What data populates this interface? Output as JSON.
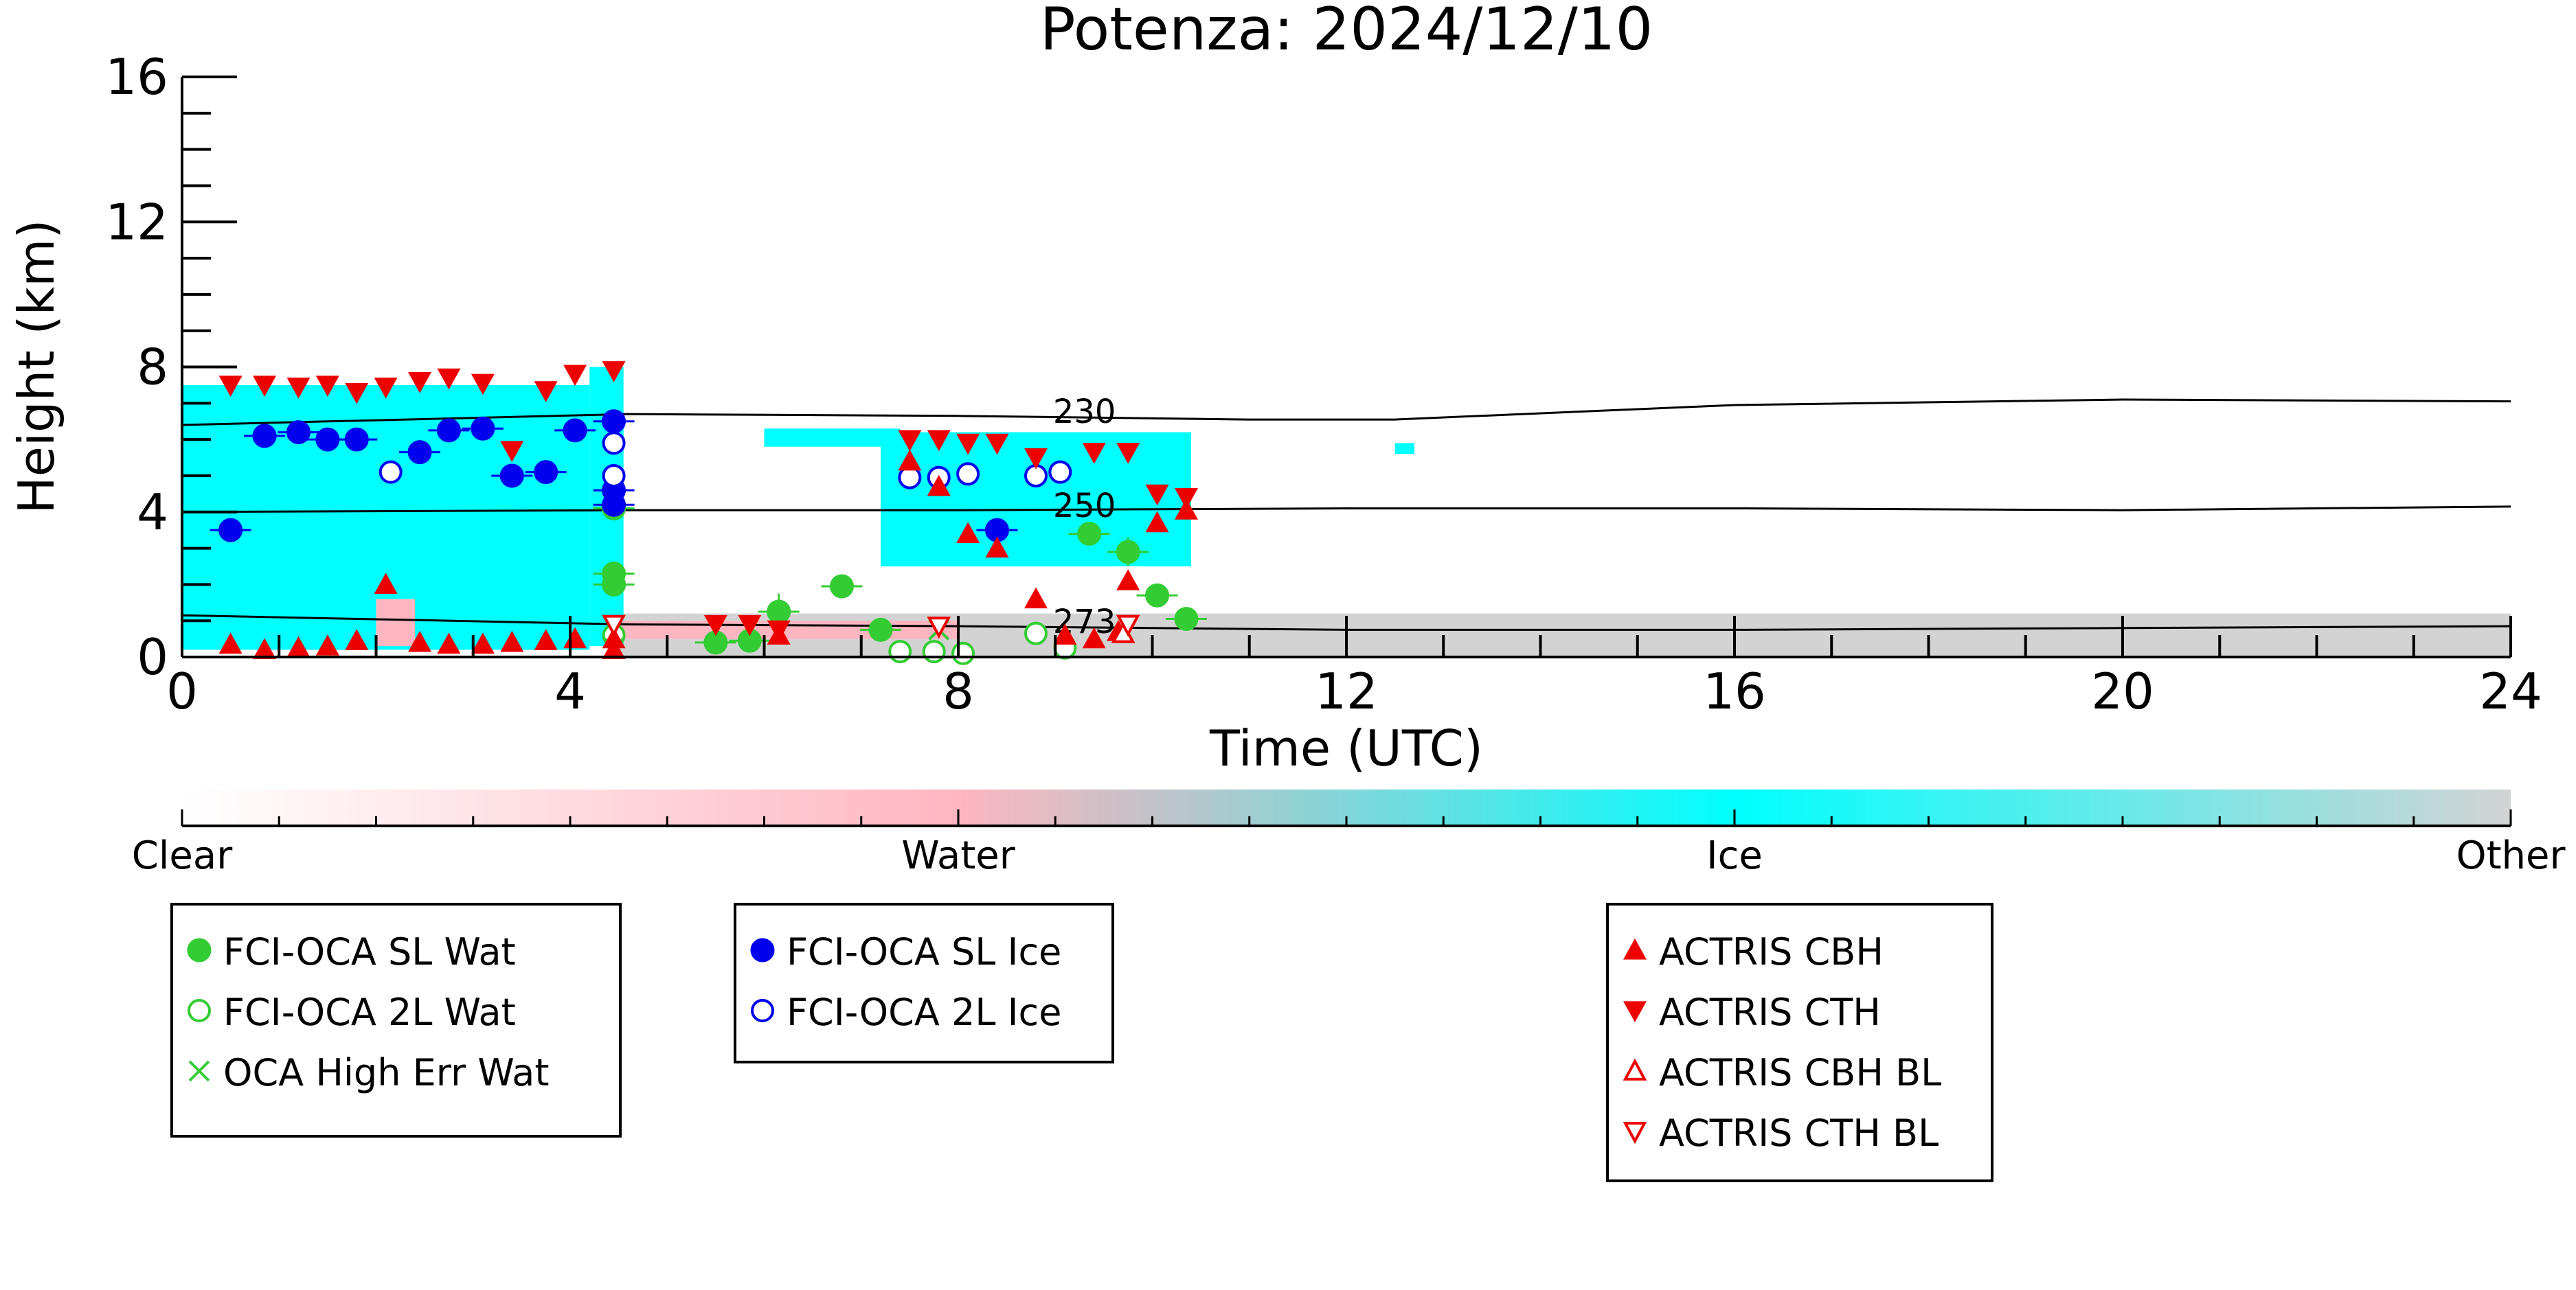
{
  "chart_data": {
    "type": "scatter",
    "title": "Potenza: 2024/12/10",
    "xlabel": "Time (UTC)",
    "ylabel": "Height (km)",
    "xlim": [
      0,
      24
    ],
    "ylim": [
      0,
      16
    ],
    "xticks": [
      0,
      4,
      8,
      12,
      16,
      20,
      24
    ],
    "yticks": [
      0,
      4,
      8,
      12,
      16
    ],
    "grid": false,
    "cloud_mask": {
      "description_colors": {
        "Clear": "#ffffff",
        "Water": "#ffb6c1",
        "Ice": "#00ffff",
        "Other": "#d3d3d3"
      },
      "ice_blocks": [
        {
          "x": [
            0.0,
            4.2
          ],
          "y": [
            0.2,
            7.5
          ]
        },
        {
          "x": [
            4.2,
            4.55
          ],
          "y": [
            0.3,
            8.0
          ]
        },
        {
          "x": [
            7.2,
            10.4
          ],
          "y": [
            2.5,
            6.2
          ]
        },
        {
          "x": [
            6.0,
            7.4
          ],
          "y": [
            5.8,
            6.3
          ]
        },
        {
          "x": [
            12.5,
            12.7
          ],
          "y": [
            5.6,
            5.9
          ]
        }
      ],
      "other_blocks": [
        {
          "x": [
            4.4,
            24.0
          ],
          "y": [
            0.0,
            1.2
          ]
        }
      ],
      "water_blocks": [
        {
          "x": [
            2.0,
            2.4
          ],
          "y": [
            0.3,
            1.6
          ]
        },
        {
          "x": [
            4.4,
            8.0
          ],
          "y": [
            0.5,
            1.0
          ]
        }
      ]
    },
    "isotherms": [
      {
        "label": "230",
        "x": [
          0.0,
          4.6,
          8.0,
          11.0,
          12.5,
          16.0,
          20.0,
          24.0
        ],
        "y": [
          6.4,
          6.7,
          6.65,
          6.55,
          6.55,
          6.95,
          7.1,
          7.05
        ]
      },
      {
        "label": "250",
        "x": [
          0.0,
          4.6,
          8.0,
          12.0,
          16.0,
          20.0,
          24.0
        ],
        "y": [
          4.0,
          4.05,
          4.05,
          4.1,
          4.1,
          4.05,
          4.15
        ]
      },
      {
        "label": "273",
        "x": [
          0.0,
          4.6,
          8.0,
          12.0,
          16.0,
          20.0,
          24.0
        ],
        "y": [
          1.15,
          0.9,
          0.85,
          0.75,
          0.75,
          0.8,
          0.85
        ]
      }
    ],
    "series": [
      {
        "name": "FCI-OCA SL Wat",
        "marker": "filled-circle",
        "color": "#33cc33",
        "x": [
          4.45,
          4.45,
          4.45,
          5.5,
          5.85,
          6.15,
          6.8,
          7.2,
          9.35,
          9.75,
          10.05,
          10.35
        ],
        "y": [
          2.3,
          2.0,
          4.1,
          0.4,
          0.45,
          1.25,
          1.95,
          0.75,
          3.4,
          2.9,
          1.7,
          1.05
        ],
        "yerr": [
          0.3,
          0.3,
          0.3,
          0.2,
          0.2,
          0.5,
          0.2,
          0.2,
          0.3,
          0.4,
          0.2,
          0.2
        ]
      },
      {
        "name": "FCI-OCA 2L Wat",
        "marker": "open-circle",
        "color": "#33cc33",
        "x": [
          4.45,
          7.4,
          7.75,
          8.05,
          8.8,
          9.1
        ],
        "y": [
          0.6,
          0.15,
          0.15,
          0.1,
          0.65,
          0.25
        ]
      },
      {
        "name": "OCA High Err Wat",
        "marker": "x",
        "color": "#33cc33",
        "x": [
          4.45,
          7.8
        ],
        "y": [
          0.25,
          0.75
        ]
      },
      {
        "name": "FCI-OCA SL Ice",
        "marker": "filled-circle",
        "color": "#0000ee",
        "x": [
          0.5,
          0.85,
          1.2,
          1.5,
          1.8,
          2.45,
          2.75,
          3.1,
          3.4,
          3.75,
          4.05,
          4.45,
          4.45,
          4.45,
          8.4
        ],
        "y": [
          3.5,
          6.1,
          6.2,
          6.0,
          6.0,
          5.65,
          6.25,
          6.3,
          5.0,
          5.1,
          6.25,
          6.5,
          4.6,
          4.2,
          3.5
        ],
        "yerr": [
          0.2,
          0.2,
          0.2,
          0.2,
          0.2,
          0.2,
          0.2,
          0.2,
          0.2,
          0.2,
          0.2,
          0.2,
          0.2,
          0.2,
          0.2
        ]
      },
      {
        "name": "FCI-OCA 2L Ice",
        "marker": "open-circle",
        "color": "#0000ee",
        "x": [
          2.15,
          4.45,
          4.45,
          7.5,
          7.8,
          8.1,
          8.8,
          9.05
        ],
        "y": [
          5.1,
          5.9,
          5.0,
          4.95,
          4.95,
          5.05,
          5.0,
          5.1
        ]
      },
      {
        "name": "ACTRIS CBH",
        "marker": "triangle-up",
        "color": "#ee0000",
        "x": [
          0.5,
          0.85,
          1.2,
          1.5,
          1.8,
          2.1,
          2.45,
          2.75,
          3.1,
          3.4,
          3.75,
          4.05,
          4.45,
          4.45,
          6.15,
          7.5,
          7.8,
          8.1,
          8.4,
          8.8,
          9.1,
          9.4,
          9.65,
          9.75,
          10.05,
          10.35
        ],
        "y": [
          0.35,
          0.2,
          0.25,
          0.3,
          0.45,
          2.0,
          0.4,
          0.35,
          0.35,
          0.4,
          0.45,
          0.5,
          0.5,
          0.2,
          0.6,
          5.4,
          4.7,
          3.4,
          3.0,
          1.6,
          0.6,
          0.5,
          0.7,
          2.1,
          3.7,
          4.05
        ]
      },
      {
        "name": "ACTRIS CTH",
        "marker": "triangle-down",
        "color": "#ee0000",
        "x": [
          0.5,
          0.85,
          1.2,
          1.5,
          1.8,
          2.1,
          2.45,
          2.75,
          3.1,
          3.4,
          3.75,
          4.05,
          4.45,
          5.5,
          5.85,
          6.15,
          7.5,
          7.8,
          8.1,
          8.4,
          8.8,
          9.4,
          9.75,
          10.05,
          10.35
        ],
        "y": [
          7.5,
          7.5,
          7.45,
          7.5,
          7.3,
          7.45,
          7.6,
          7.7,
          7.55,
          5.7,
          7.35,
          7.8,
          7.9,
          0.9,
          0.9,
          0.75,
          6.0,
          6.0,
          5.9,
          5.9,
          5.5,
          5.65,
          5.65,
          4.5,
          4.4
        ]
      },
      {
        "name": "ACTRIS CBH BL",
        "marker": "open-triangle-up",
        "color": "#ee0000",
        "x": [
          9.7
        ],
        "y": [
          0.65
        ]
      },
      {
        "name": "ACTRIS CTH BL",
        "marker": "open-triangle-down",
        "color": "#ee0000",
        "x": [
          4.45,
          7.8,
          9.75
        ],
        "y": [
          0.9,
          0.85,
          0.9
        ]
      }
    ],
    "colorbar": {
      "ticks": [
        "Clear",
        "Water",
        "Ice",
        "Other"
      ]
    },
    "legends": [
      {
        "entries": [
          "FCI-OCA SL Wat",
          "FCI-OCA 2L Wat",
          "OCA High Err Wat"
        ]
      },
      {
        "entries": [
          "FCI-OCA SL Ice",
          "FCI-OCA 2L Ice"
        ]
      },
      {
        "entries": [
          "ACTRIS CBH",
          "ACTRIS CTH",
          "ACTRIS CBH BL",
          "ACTRIS CTH BL"
        ]
      }
    ]
  }
}
